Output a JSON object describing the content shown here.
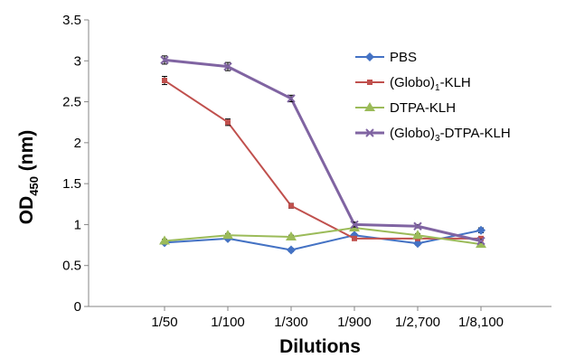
{
  "chart_data": {
    "type": "line",
    "title": "",
    "xlabel": "Dilutions",
    "ylabel": {
      "base": "OD",
      "sub": "450",
      "suffix": " (nm)"
    },
    "ylim": [
      0,
      3.5
    ],
    "yticks": [
      "0",
      "0.5",
      "1",
      "1.5",
      "2",
      "2.5",
      "3",
      "3.5"
    ],
    "categories": [
      "1/50",
      "1/100",
      "1/300",
      "1/900",
      "1/2,700",
      "1/8,100"
    ],
    "grid": false,
    "legend_position": "top-right",
    "series": [
      {
        "name_parts": {
          "pre": "PBS",
          "sub": "",
          "post": ""
        },
        "color": "#4472c4",
        "marker": "diamond",
        "values": [
          0.78,
          0.83,
          0.69,
          0.87,
          0.77,
          0.93
        ],
        "errors": [
          0.02,
          0.02,
          0.02,
          0.02,
          0.02,
          0.03
        ]
      },
      {
        "name_parts": {
          "pre": "(Globo)",
          "sub": "1",
          "post": "-KLH"
        },
        "color": "#c0504d",
        "marker": "square",
        "values": [
          2.76,
          2.25,
          1.23,
          0.83,
          0.83,
          0.83
        ],
        "errors": [
          0.05,
          0.04,
          0.03,
          0.02,
          0.02,
          0.02
        ]
      },
      {
        "name_parts": {
          "pre": "DTPA-KLH",
          "sub": "",
          "post": ""
        },
        "color": "#9bbb59",
        "marker": "triangle",
        "values": [
          0.8,
          0.87,
          0.85,
          0.96,
          0.87,
          0.76
        ],
        "errors": [
          0.02,
          0.02,
          0.02,
          0.02,
          0.02,
          0.02
        ]
      },
      {
        "name_parts": {
          "pre": "(Globo)",
          "sub": "3",
          "post": "-DTPA-KLH"
        },
        "color": "#8064a2",
        "marker": "cross",
        "values": [
          3.01,
          2.93,
          2.54,
          1.0,
          0.98,
          0.8
        ],
        "errors": [
          0.05,
          0.05,
          0.04,
          0.03,
          0.02,
          0.02
        ]
      }
    ]
  }
}
